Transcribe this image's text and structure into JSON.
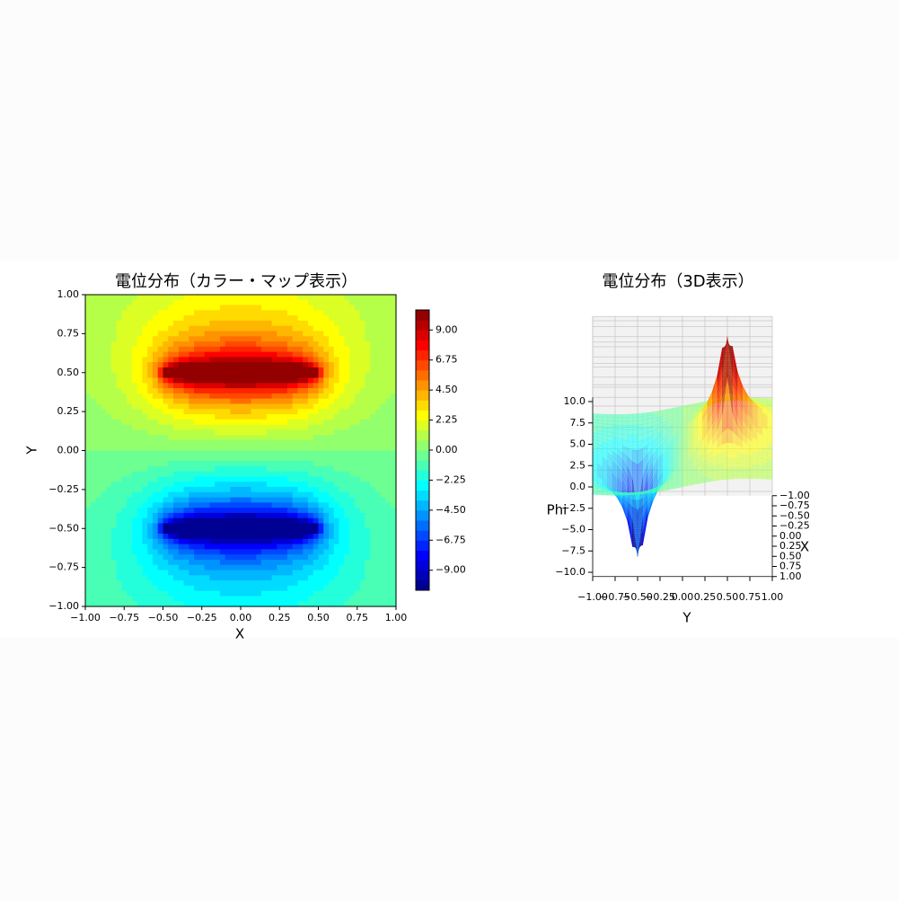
{
  "chart_data": [
    {
      "type": "contour",
      "title": "電位分布（カラー・マップ表示）",
      "xlabel": "X",
      "ylabel": "Y",
      "xlim": [
        -1,
        1
      ],
      "ylim": [
        -1,
        1
      ],
      "xticks": [
        {
          "value": -1,
          "label": "−1.00"
        },
        {
          "value": -0.75,
          "label": "−0.75"
        },
        {
          "value": -0.5,
          "label": "−0.50"
        },
        {
          "value": -0.25,
          "label": "−0.25"
        },
        {
          "value": 0,
          "label": "0.00"
        },
        {
          "value": 0.25,
          "label": "0.25"
        },
        {
          "value": 0.5,
          "label": "0.50"
        },
        {
          "value": 0.75,
          "label": "0.75"
        },
        {
          "value": 1,
          "label": "1.00"
        }
      ],
      "yticks": [
        {
          "value": -1,
          "label": "−1.00"
        },
        {
          "value": -0.75,
          "label": "−0.75"
        },
        {
          "value": -0.5,
          "label": "−0.50"
        },
        {
          "value": -0.25,
          "label": "−0.25"
        },
        {
          "value": 0,
          "label": "0.00"
        },
        {
          "value": 0.25,
          "label": "0.25"
        },
        {
          "value": 0.5,
          "label": "0.50"
        },
        {
          "value": 0.75,
          "label": "0.75"
        },
        {
          "value": 1,
          "label": "1.00"
        }
      ],
      "levels": [
        -10.5,
        -9.75,
        -9,
        -8.25,
        -7.5,
        -6.75,
        -6,
        -5.25,
        -4.5,
        -3.75,
        -3,
        -2.25,
        -1.5,
        -0.75,
        0,
        0.75,
        1.5,
        2.25,
        3,
        3.75,
        4.5,
        5.25,
        6,
        6.75,
        7.5,
        8.25,
        9,
        9.75,
        10.5
      ],
      "colorbar_ticks": [
        {
          "value": -9,
          "label": "−9.00"
        },
        {
          "value": -6.75,
          "label": "−6.75"
        },
        {
          "value": -4.5,
          "label": "−4.50"
        },
        {
          "value": -2.25,
          "label": "−2.25"
        },
        {
          "value": 0,
          "label": "0.00"
        },
        {
          "value": 2.25,
          "label": "2.25"
        },
        {
          "value": 4.5,
          "label": "4.50"
        },
        {
          "value": 6.75,
          "label": "6.75"
        },
        {
          "value": 9,
          "label": "9.00"
        }
      ],
      "colormap": "jet"
    },
    {
      "type": "surface3d",
      "title": "電位分布（3D表示）",
      "xlabel": "X",
      "ylabel": "Y",
      "zlabel": "Phi",
      "xlim": [
        -1,
        1
      ],
      "ylim": [
        -1,
        1
      ],
      "zlim": [
        -10.5,
        10.5
      ],
      "xticks": [
        {
          "value": -1,
          "label": "−1.00"
        },
        {
          "value": -0.75,
          "label": "−0.75"
        },
        {
          "value": -0.5,
          "label": "−0.50"
        },
        {
          "value": -0.25,
          "label": "−0.25"
        },
        {
          "value": 0,
          "label": "0.00"
        },
        {
          "value": 0.25,
          "label": "0.25"
        },
        {
          "value": 0.5,
          "label": "0.50"
        },
        {
          "value": 0.75,
          "label": "0.75"
        },
        {
          "value": 1,
          "label": "1.00"
        }
      ],
      "yticks": [
        {
          "value": -1,
          "label": "−1.00"
        },
        {
          "value": -0.75,
          "label": "−0.75"
        },
        {
          "value": -0.5,
          "label": "−0.50"
        },
        {
          "value": -0.25,
          "label": "−0.25"
        },
        {
          "value": 0,
          "label": "0.00"
        },
        {
          "value": 0.25,
          "label": "0.25"
        },
        {
          "value": 0.5,
          "label": "0.50"
        },
        {
          "value": 0.75,
          "label": "0.75"
        },
        {
          "value": 1,
          "label": "1.00"
        }
      ],
      "zticks": [
        {
          "value": -10,
          "label": "−10.0"
        },
        {
          "value": -7.5,
          "label": "−7.5"
        },
        {
          "value": -5,
          "label": "−5.0"
        },
        {
          "value": -2.5,
          "label": "−2.5"
        },
        {
          "value": 0,
          "label": "0.0"
        },
        2.5,
        {
          "value": 5,
          "label": "5.0"
        },
        7.5,
        {
          "value": 10,
          "label": "10.0"
        }
      ],
      "levels": [
        -10.5,
        -9.75,
        -9,
        -8.25,
        -7.5,
        -6.75,
        -6,
        -5.25,
        -4.5,
        -3.75,
        -3,
        -2.25,
        -1.5,
        -0.75,
        0,
        0.75,
        1.5,
        2.25,
        3,
        3.75,
        4.5,
        5.25,
        6,
        6.75,
        7.5,
        8.25,
        9,
        9.75,
        10.5
      ],
      "colormap": "jet"
    }
  ]
}
